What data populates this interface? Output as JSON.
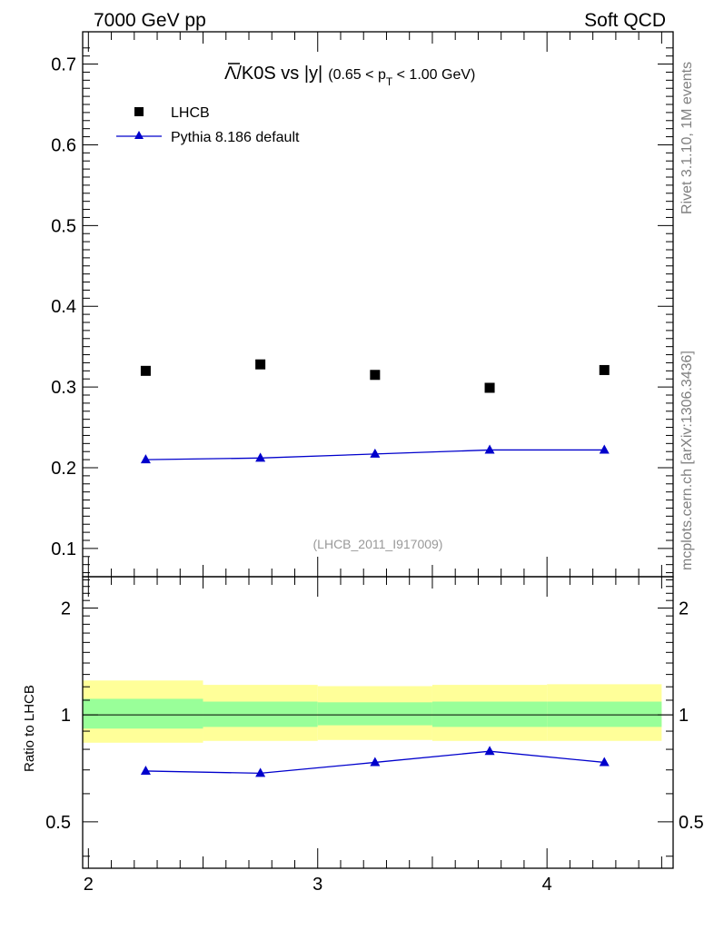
{
  "header": {
    "left_label": "7000 GeV pp",
    "right_label": "Soft QCD"
  },
  "side_labels": {
    "rivet": "Rivet 3.1.10,  1M events",
    "mcplots": "mcplots.cern.ch [arXiv:1306.3436]"
  },
  "chart_data": [
    {
      "type": "scatter",
      "panel": "main",
      "title_parts": {
        "lambda_symbol": "Λ",
        "ratio_text": "/K0S vs |y|",
        "cut_prefix": "(0.65 < p",
        "cut_subscript": "T",
        "cut_suffix": " < 1.00 GeV)"
      },
      "watermark": "(LHCB_2011_I917009)",
      "x": [
        2.25,
        2.75,
        3.25,
        3.75,
        4.25
      ],
      "xlim": [
        1.975,
        4.55
      ],
      "ylim": [
        0.065,
        0.74
      ],
      "yticks": [
        "0.1",
        "0.2",
        "0.3",
        "0.4",
        "0.5",
        "0.6",
        "0.7"
      ],
      "ytick_values": [
        0.1,
        0.2,
        0.3,
        0.4,
        0.5,
        0.6,
        0.7
      ],
      "series": [
        {
          "name": "LHCB",
          "marker": "square",
          "color": "#000000",
          "values": [
            0.32,
            0.328,
            0.315,
            0.299,
            0.321
          ]
        },
        {
          "name": "Pythia 8.186 default",
          "marker": "triangle",
          "color": "#0000cc",
          "values": [
            0.21,
            0.212,
            0.217,
            0.222,
            0.222
          ]
        }
      ],
      "legend_placement": "top-left"
    },
    {
      "type": "line",
      "panel": "ratio",
      "ylabel": "Ratio to LHCB",
      "y_scale": "log",
      "ylim": [
        0.37,
        2.45
      ],
      "yticks": [
        "0.5",
        "1",
        "2"
      ],
      "ytick_values": [
        0.5,
        1,
        2
      ],
      "xticks": [
        "2",
        "3",
        "4"
      ],
      "xtick_values": [
        2,
        3,
        4
      ],
      "bins": [
        [
          1.975,
          2.5
        ],
        [
          2.5,
          3.0
        ],
        [
          3.0,
          3.5
        ],
        [
          3.5,
          4.0
        ],
        [
          4.0,
          4.5
        ]
      ],
      "band_inner": [
        [
          0.915,
          1.11
        ],
        [
          0.925,
          1.09
        ],
        [
          0.935,
          1.085
        ],
        [
          0.925,
          1.09
        ],
        [
          0.925,
          1.09
        ]
      ],
      "band_outer": [
        [
          0.835,
          1.25
        ],
        [
          0.845,
          1.215
        ],
        [
          0.85,
          1.205
        ],
        [
          0.845,
          1.215
        ],
        [
          0.845,
          1.22
        ]
      ],
      "x": [
        2.25,
        2.75,
        3.25,
        3.75,
        4.25
      ],
      "series": [
        {
          "name": "Pythia 8.186 default",
          "color": "#0000cc",
          "values": [
            0.695,
            0.685,
            0.735,
            0.79,
            0.735
          ]
        }
      ],
      "colors": {
        "inner_band": "#99ff99",
        "outer_band": "#ffff99"
      }
    }
  ]
}
